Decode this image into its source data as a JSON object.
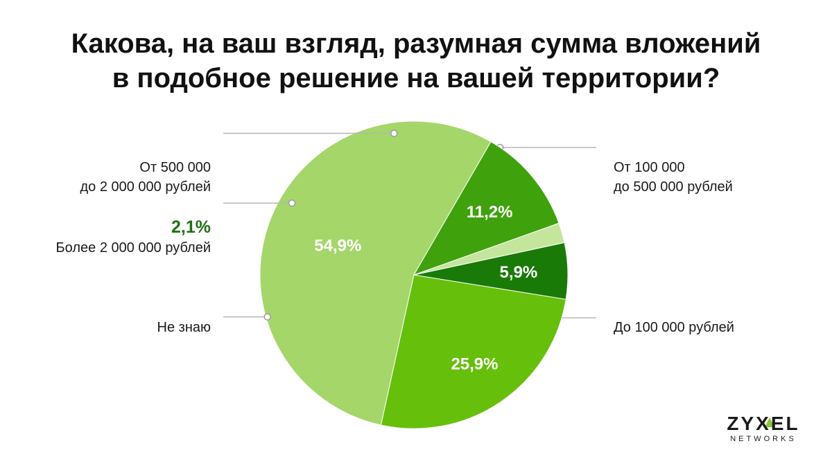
{
  "title": {
    "line1": "Какова, на ваш взгляд, разумная сумма вложений",
    "line2": "в подобное решение на вашей территории?"
  },
  "chart_data": {
    "type": "pie",
    "title": "Какова, на ваш взгляд, разумная сумма вложений в подобное решение на вашей территории?",
    "unit": "%",
    "start_angle_deg": 60,
    "direction": "counterclockwise",
    "slices": [
      {
        "key": "s549",
        "label": "До 100 000 рублей",
        "value": 54.9,
        "value_label": "54,9%",
        "color": "#a4d66a"
      },
      {
        "key": "s259",
        "label": "От 100 000 до 500 000 рублей",
        "label_lines": [
          "От 100 000",
          "до 500 000 рублей"
        ],
        "value": 25.9,
        "value_label": "25,9%",
        "color": "#66bf0a"
      },
      {
        "key": "s59",
        "label": "От 500 000 до 2 000 000 рублей",
        "label_lines": [
          "От 500 000",
          "до 2 000 000 рублей"
        ],
        "value": 5.9,
        "value_label": "5,9%",
        "color": "#1a7a08"
      },
      {
        "key": "s21",
        "label": "Более 2 000 000 рублей",
        "value": 2.1,
        "value_label": "2,1%",
        "color": "#c4e59c"
      },
      {
        "key": "s112",
        "label": "Не знаю",
        "value": 11.2,
        "value_label": "11,2%",
        "color": "#3fa10c"
      }
    ],
    "legend": "callouts"
  },
  "logo": {
    "brand": "ZYXEL",
    "sub": "NETWORKS"
  }
}
